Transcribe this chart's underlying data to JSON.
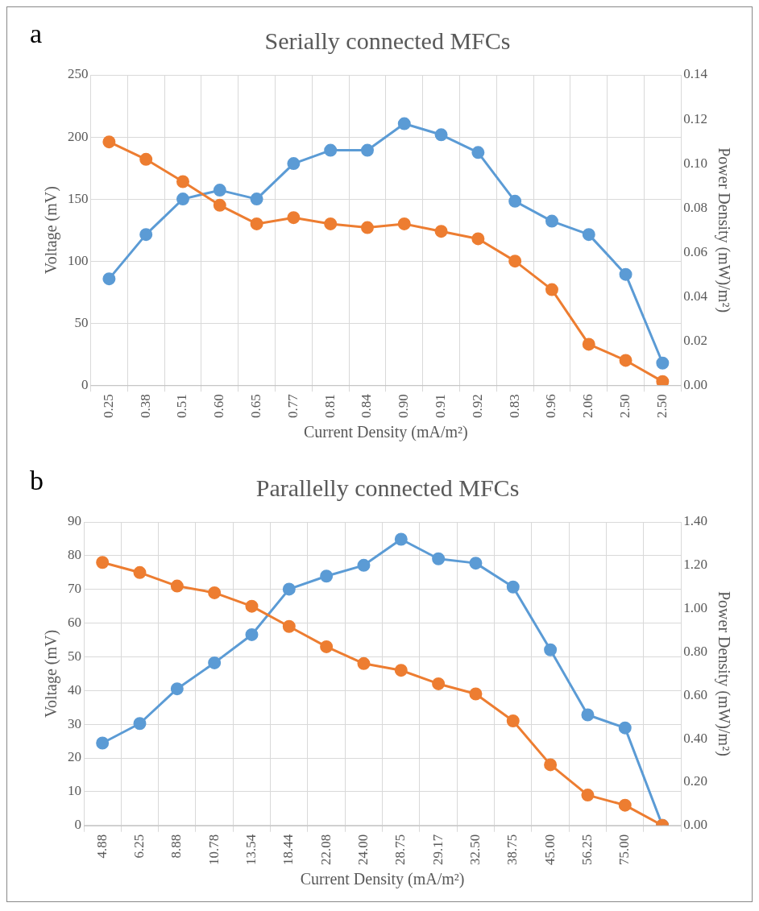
{
  "chart_data": [
    {
      "type": "line",
      "title": "Serially connected MFCs",
      "annotations": [
        "a"
      ],
      "xlabel": "Current Density (mA/m²)",
      "ylabel": "Voltage (mV)",
      "y2label": "Power Density (mW)/m²)",
      "categories": [
        "0.25",
        "0.38",
        "0.51",
        "0.60",
        "0.65",
        "0.77",
        "0.81",
        "0.84",
        "0.90",
        "0.91",
        "0.92",
        "0.83",
        "0.96",
        "2.06",
        "2.50",
        "2.50"
      ],
      "series": [
        {
          "color": "#ed7d31",
          "values": [
            196,
            182,
            164,
            145,
            130,
            135,
            130,
            127,
            130,
            124,
            118,
            100,
            77,
            33,
            20,
            3
          ]
        },
        {
          "color": "#5b9bd5",
          "axis": "y2",
          "values": [
            0.048,
            0.068,
            0.084,
            0.088,
            0.084,
            0.1,
            0.106,
            0.106,
            0.118,
            0.113,
            0.105,
            0.083,
            0.074,
            0.068,
            0.05,
            0.01
          ]
        }
      ],
      "ylim": [
        0,
        250
      ],
      "yticks": [
        0,
        50,
        100,
        150,
        200,
        250
      ],
      "y2lim": [
        0,
        0.14
      ],
      "y2ticks": [
        {
          "value": 0,
          "label": "0.00"
        },
        {
          "value": 0.02,
          "label": "0.02"
        },
        {
          "value": 0.04,
          "label": "0.04"
        },
        {
          "value": 0.06,
          "label": "0.06"
        },
        {
          "value": 0.08,
          "label": "0.08"
        },
        {
          "value": 0.1,
          "label": "0.10"
        },
        {
          "value": 0.12,
          "label": "0.12"
        },
        {
          "value": 0.14,
          "label": "0.14"
        }
      ],
      "grid": true,
      "legend": false,
      "marker": "circle",
      "line_style": "solid"
    },
    {
      "type": "line",
      "title": "Parallelly connected MFCs",
      "annotations": [
        "b"
      ],
      "xlabel": "Current Density (mA/m²)",
      "ylabel": "Voltage (mV)",
      "y2label": "Power Density (mW)/m²)",
      "categories": [
        "4.88",
        "6.25",
        "8.88",
        "10.78",
        "13.54",
        "18.44",
        "22.08",
        "24.00",
        "28.75",
        "29.17",
        "32.50",
        "38.75",
        "45.00",
        "56.25",
        "75.00",
        null
      ],
      "series": [
        {
          "color": "#ed7d31",
          "values": [
            78,
            75,
            71,
            69,
            65,
            59,
            53,
            48,
            46,
            42,
            39,
            31,
            18,
            9,
            6,
            0
          ]
        },
        {
          "color": "#5b9bd5",
          "axis": "y2",
          "values": [
            0.38,
            0.47,
            0.63,
            0.75,
            0.88,
            1.09,
            1.15,
            1.2,
            1.32,
            1.23,
            1.21,
            1.1,
            0.81,
            0.51,
            0.45,
            0
          ]
        }
      ],
      "ylim": [
        0,
        90
      ],
      "yticks": [
        0,
        10,
        20,
        30,
        40,
        50,
        60,
        70,
        80,
        90
      ],
      "y2lim": [
        0,
        1.4
      ],
      "y2ticks": [
        {
          "value": 0,
          "label": "0.00"
        },
        {
          "value": 0.2,
          "label": "0.20"
        },
        {
          "value": 0.4,
          "label": "0.40"
        },
        {
          "value": 0.6,
          "label": "0.60"
        },
        {
          "value": 0.8,
          "label": "0.80"
        },
        {
          "value": 1.0,
          "label": "1.00"
        },
        {
          "value": 1.2,
          "label": "1.20"
        },
        {
          "value": 1.4,
          "label": "1.40"
        }
      ],
      "grid": true,
      "legend": false,
      "marker": "circle",
      "line_style": "solid"
    }
  ]
}
